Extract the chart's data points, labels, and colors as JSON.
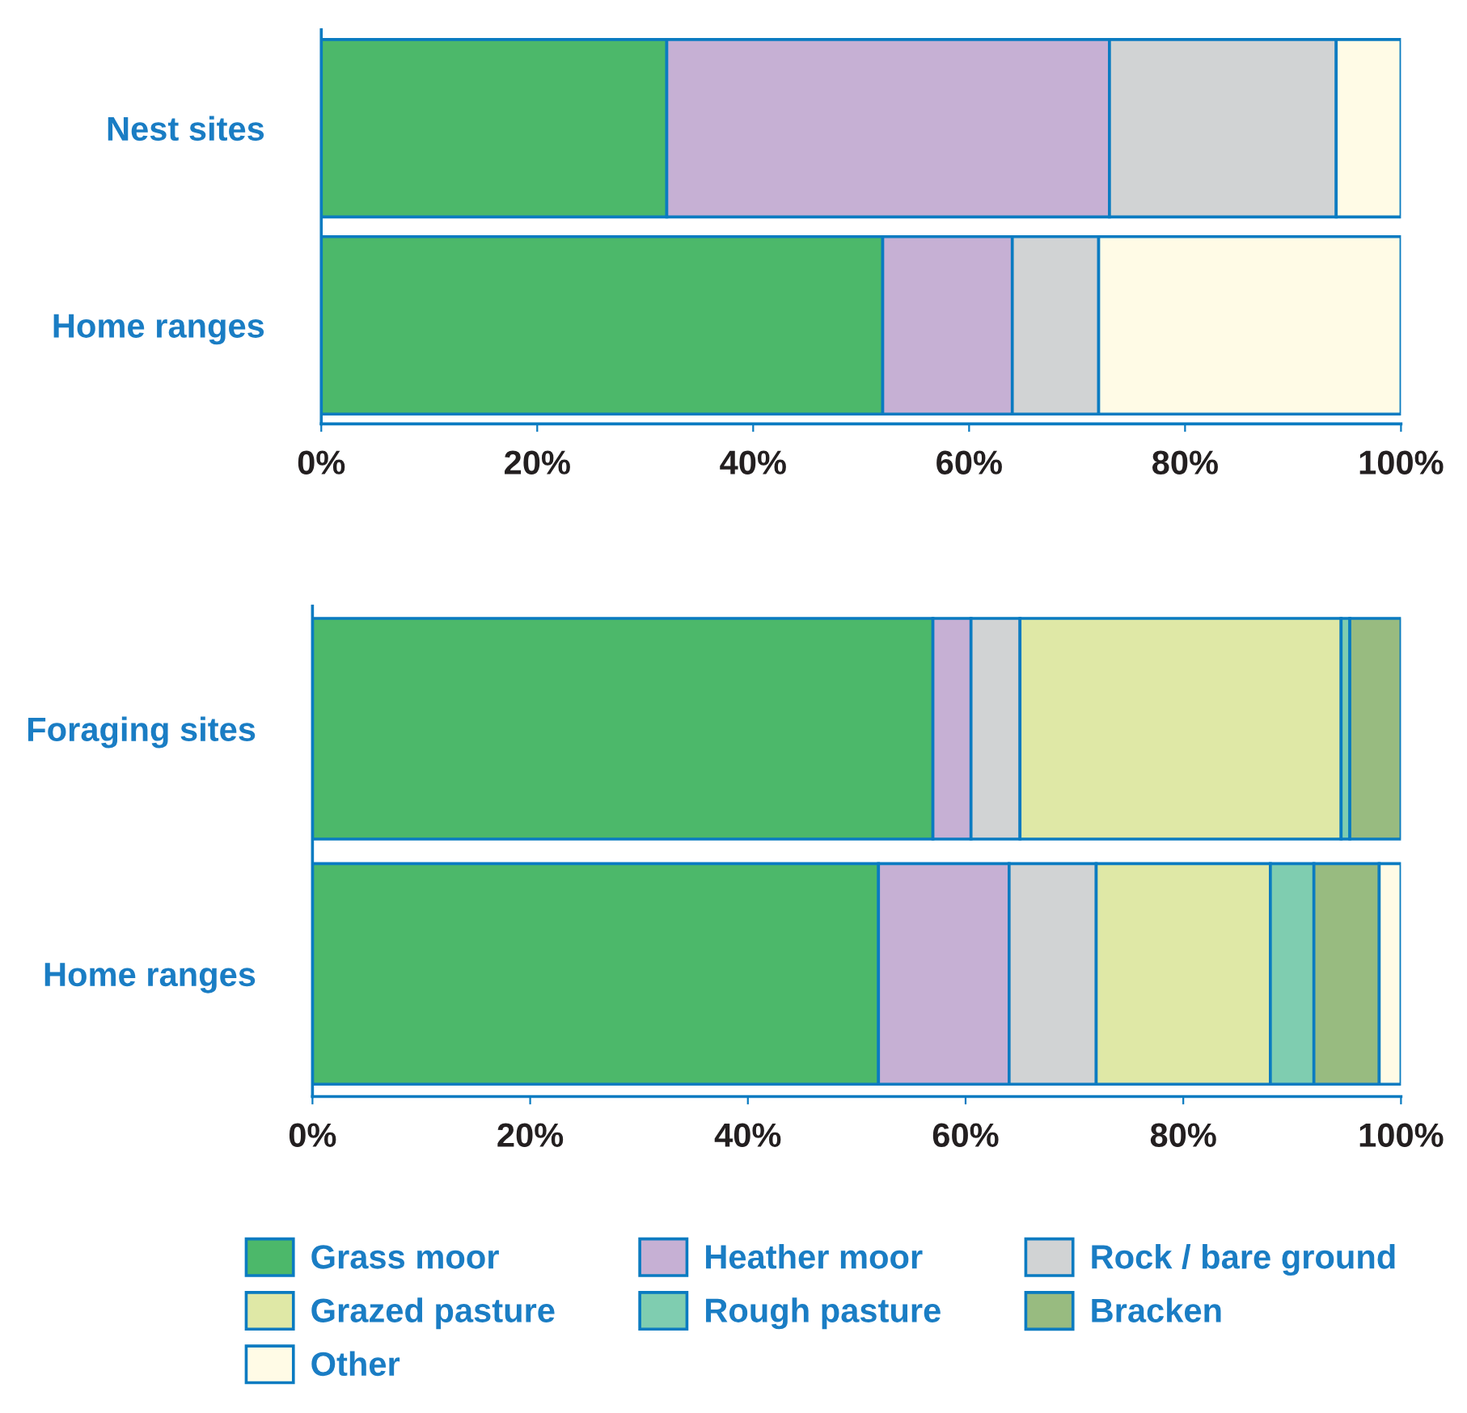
{
  "chart_data": [
    {
      "type": "bar",
      "orientation": "horizontal",
      "stacked": true,
      "categories": [
        "Nest sites",
        "Home ranges"
      ],
      "xlim": [
        0,
        100
      ],
      "xticks": [
        {
          "value": 0,
          "label": "0%"
        },
        {
          "value": 20,
          "label": "20%"
        },
        {
          "value": 40,
          "label": "40%"
        },
        {
          "value": 60,
          "label": "60%"
        },
        {
          "value": 80,
          "label": "80%"
        },
        {
          "value": 100,
          "label": "100%"
        }
      ],
      "grid": false,
      "legend": false,
      "series": [
        {
          "color": "#4cb86a",
          "values": [
            32,
            52
          ]
        },
        {
          "color": "#c6b0d4",
          "values": [
            41,
            12
          ]
        },
        {
          "color": "#d1d3d4",
          "values": [
            21,
            8
          ]
        },
        {
          "color": "#fffbe6",
          "values": [
            6,
            28
          ]
        }
      ]
    },
    {
      "type": "bar",
      "orientation": "horizontal",
      "stacked": true,
      "categories": [
        "Foraging sites",
        "Home ranges"
      ],
      "xlim": [
        0,
        100
      ],
      "xticks": [
        {
          "value": 0,
          "label": "0%"
        },
        {
          "value": 20,
          "label": "20%"
        },
        {
          "value": 40,
          "label": "40%"
        },
        {
          "value": 60,
          "label": "60%"
        },
        {
          "value": 80,
          "label": "80%"
        },
        {
          "value": 100,
          "label": "100%"
        }
      ],
      "grid": false,
      "legend": "bottom",
      "series": [
        {
          "name": "Grass moor",
          "color": "#4cb86a",
          "values": [
            57,
            52
          ]
        },
        {
          "name": "Heather moor",
          "color": "#c6b0d4",
          "values": [
            3.5,
            12
          ]
        },
        {
          "name": "Rock / bare ground",
          "color": "#d1d3d4",
          "values": [
            4.5,
            8
          ]
        },
        {
          "name": "Grazed pasture",
          "color": "#dfe8a6",
          "values": [
            29.5,
            16
          ]
        },
        {
          "name": "Rough pasture",
          "color": "#7fcdb0",
          "values": [
            0.8,
            4
          ]
        },
        {
          "name": "Bracken",
          "color": "#98bb80",
          "values": [
            4.7,
            6
          ]
        },
        {
          "name": "Other",
          "color": "#fffbe6",
          "values": [
            null,
            2
          ]
        }
      ]
    }
  ]
}
